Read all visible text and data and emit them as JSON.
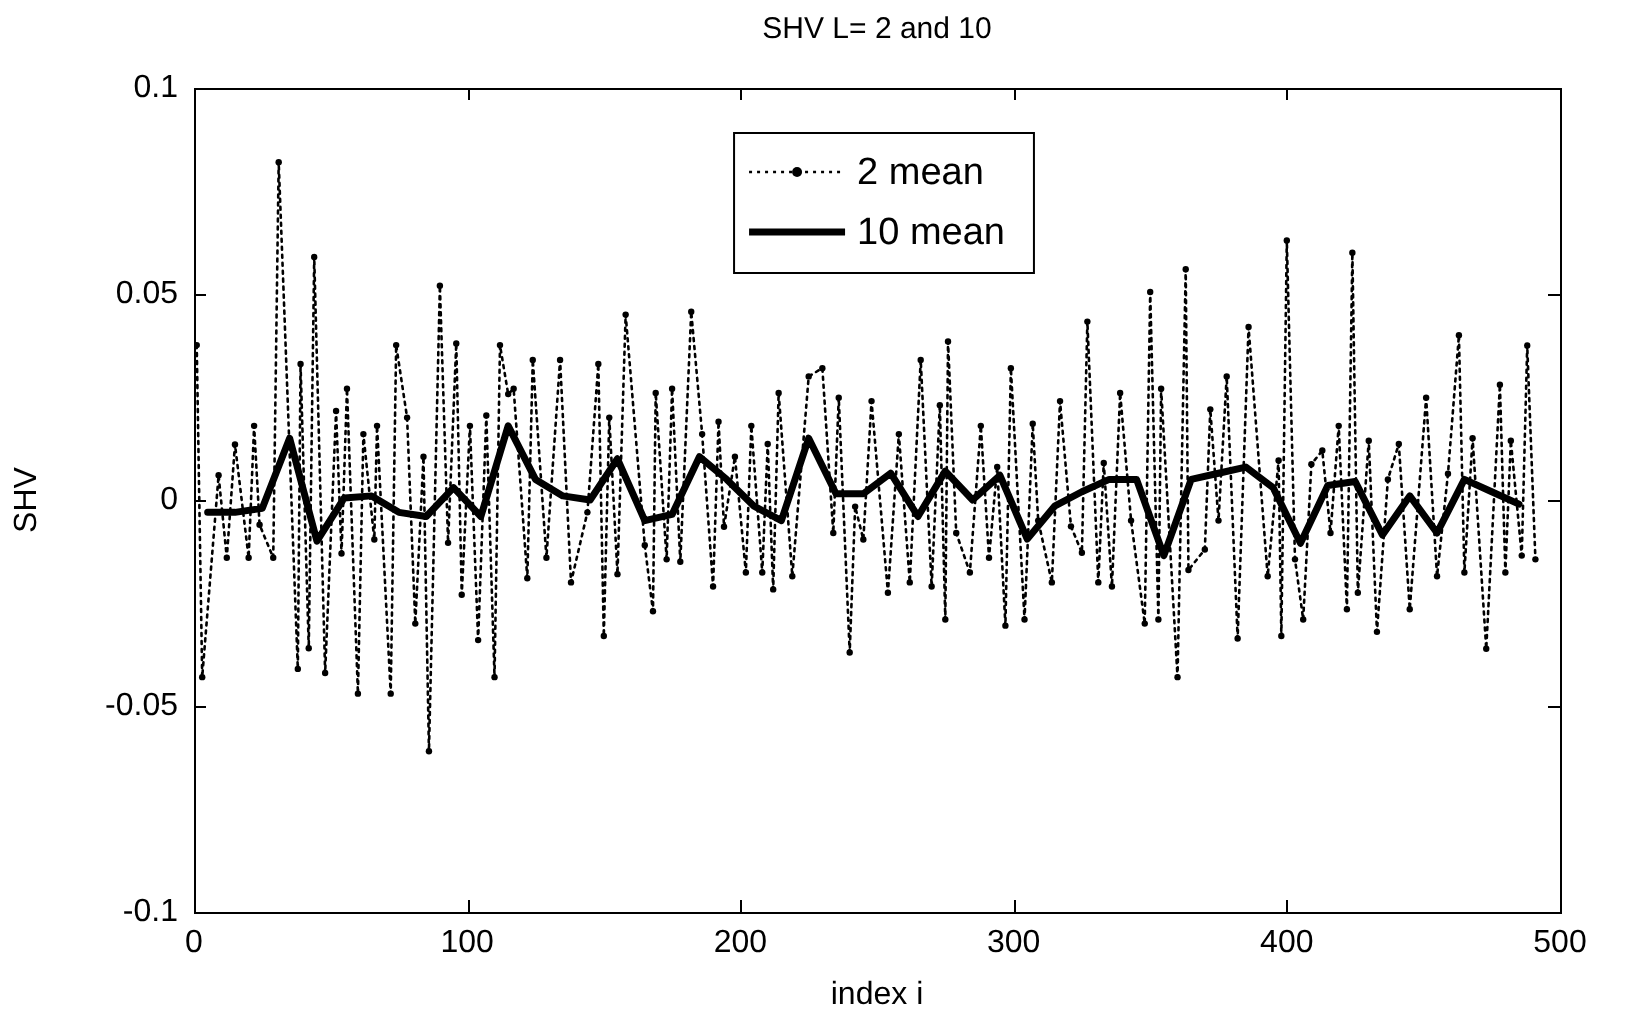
{
  "chart_data": {
    "type": "line",
    "title": "SHV L= 2 and 10",
    "xlabel": "index i",
    "ylabel": "SHV",
    "xlim": [
      0,
      500
    ],
    "xticks": [
      0,
      100,
      200,
      300,
      400,
      500
    ],
    "ylim": [
      -0.1,
      0.1
    ],
    "yticks": [
      -0.1,
      -0.05,
      0,
      0.05,
      0.1
    ],
    "grid": false,
    "legend": "top",
    "series": [
      {
        "name": "2 mean",
        "color": "#000000",
        "line_style": "dotted",
        "marker": "circle",
        "x": [
          1,
          3,
          9,
          12,
          15,
          20,
          22,
          24,
          29,
          31,
          38,
          39,
          42,
          44,
          48,
          52,
          54,
          56,
          60,
          62,
          66,
          67,
          72,
          74,
          78,
          81,
          84,
          86,
          90,
          93,
          96,
          98,
          101,
          104,
          107,
          110,
          112,
          115,
          117,
          122,
          124,
          129,
          134,
          138,
          144,
          148,
          150,
          152,
          155,
          158,
          165,
          168,
          169,
          173,
          175,
          178,
          182,
          186,
          190,
          192,
          194,
          198,
          202,
          204,
          208,
          210,
          212,
          214,
          219,
          225,
          230,
          234,
          236,
          240,
          242,
          245,
          248,
          254,
          258,
          262,
          266,
          270,
          273,
          275,
          276,
          279,
          284,
          288,
          291,
          294,
          297,
          299,
          304,
          307,
          309,
          314,
          317,
          321,
          325,
          327,
          331,
          333,
          336,
          339,
          343,
          348,
          350,
          353,
          354,
          360,
          363,
          364,
          370,
          372,
          375,
          378,
          382,
          386,
          393,
          397,
          398,
          400,
          403,
          406,
          409,
          413,
          416,
          419,
          422,
          424,
          426,
          430,
          433,
          437,
          441,
          445,
          451,
          455,
          459,
          463,
          465,
          468,
          473,
          478,
          480,
          482,
          486,
          488,
          491
        ],
        "values": [
          0.0376,
          -0.043,
          0.006,
          -0.014,
          0.0135,
          -0.014,
          0.018,
          -0.006,
          -0.014,
          0.082,
          -0.041,
          0.033,
          -0.036,
          0.059,
          -0.042,
          0.0216,
          -0.013,
          0.027,
          -0.047,
          0.016,
          -0.0096,
          0.018,
          -0.047,
          0.0376,
          0.02,
          -0.03,
          0.0105,
          -0.061,
          0.052,
          -0.0104,
          0.038,
          -0.023,
          0.018,
          -0.034,
          0.0205,
          -0.043,
          0.0376,
          0.0257,
          0.027,
          -0.019,
          0.034,
          -0.014,
          0.034,
          -0.02,
          -0.003,
          0.033,
          -0.033,
          0.02,
          -0.018,
          0.045,
          -0.011,
          -0.027,
          0.026,
          -0.0144,
          0.027,
          -0.015,
          0.0457,
          0.016,
          -0.021,
          0.019,
          -0.0065,
          0.0105,
          -0.0176,
          0.018,
          -0.0176,
          0.0136,
          -0.0217,
          0.026,
          -0.0185,
          0.03,
          0.032,
          -0.008,
          0.0248,
          -0.037,
          -0.0016,
          -0.0096,
          0.024,
          -0.0225,
          0.016,
          -0.02,
          0.034,
          -0.021,
          0.023,
          -0.029,
          0.0385,
          -0.008,
          -0.0176,
          0.018,
          -0.014,
          0.008,
          -0.0305,
          0.032,
          -0.029,
          0.0185,
          -0.005,
          -0.02,
          0.024,
          -0.0064,
          -0.0128,
          0.0433,
          -0.02,
          0.009,
          -0.021,
          0.026,
          -0.005,
          -0.03,
          0.0505,
          -0.029,
          0.027,
          -0.043,
          0.056,
          -0.017,
          -0.012,
          0.022,
          -0.005,
          0.03,
          -0.0336,
          0.042,
          -0.0185,
          0.0096,
          -0.033,
          0.063,
          -0.0144,
          -0.029,
          0.0087,
          0.012,
          -0.008,
          0.018,
          -0.0265,
          0.06,
          -0.0225,
          0.0144,
          -0.032,
          0.005,
          0.0136,
          -0.0265,
          0.0248,
          -0.0185,
          0.0064,
          0.04,
          -0.0176,
          0.015,
          -0.0361,
          0.028,
          -0.0176,
          0.0144,
          -0.0135,
          0.0375,
          -0.0144
        ]
      },
      {
        "name": "10 mean",
        "color": "#000000",
        "line_style": "solid",
        "marker": "none",
        "x": [
          5,
          15,
          25,
          35,
          45,
          55,
          65,
          75,
          85,
          95,
          105,
          115,
          125,
          135,
          145,
          155,
          165,
          175,
          185,
          195,
          205,
          215,
          225,
          235,
          245,
          255,
          265,
          275,
          285,
          295,
          305,
          315,
          325,
          335,
          345,
          355,
          365,
          375,
          385,
          395,
          405,
          415,
          425,
          435,
          445,
          455,
          465,
          475,
          485
        ],
        "values": [
          -0.003,
          -0.003,
          -0.002,
          0.015,
          -0.01,
          0.0005,
          0.001,
          -0.003,
          -0.004,
          0.003,
          -0.004,
          0.018,
          0.005,
          0.001,
          0,
          0.01,
          -0.005,
          -0.0035,
          0.0105,
          0.005,
          -0.0015,
          -0.005,
          0.015,
          0.0015,
          0.0015,
          0.0065,
          -0.004,
          0.007,
          0,
          0.006,
          -0.0095,
          -0.0015,
          0.002,
          0.005,
          0.005,
          -0.0135,
          0.005,
          0.0065,
          0.008,
          0.003,
          -0.0105,
          0.0035,
          0.0045,
          -0.0085,
          0.001,
          -0.008,
          0.005,
          0.002,
          -0.001
        ]
      }
    ]
  }
}
